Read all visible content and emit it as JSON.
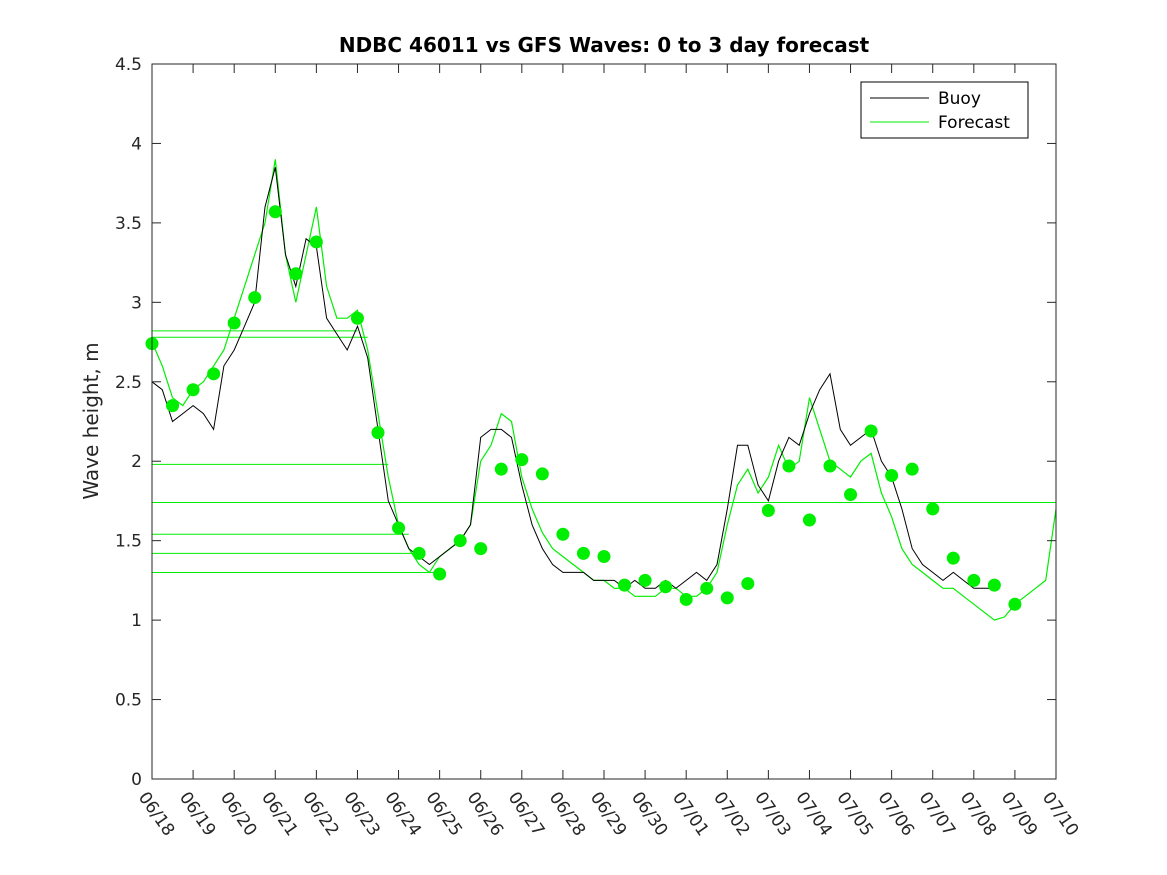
{
  "chart_data": {
    "type": "line",
    "title": "NDBC 46011 vs GFS Waves: 0 to 3 day forecast",
    "xlabel": "",
    "ylabel": "Wave height, m",
    "xlim": [
      0,
      22
    ],
    "ylim": [
      0,
      4.5
    ],
    "x_tick_labels": [
      "06/18",
      "06/19",
      "06/20",
      "06/21",
      "06/22",
      "06/23",
      "06/24",
      "06/25",
      "06/26",
      "06/27",
      "06/28",
      "06/29",
      "06/30",
      "07/01",
      "07/02",
      "07/03",
      "07/04",
      "07/05",
      "07/06",
      "07/07",
      "07/08",
      "07/09",
      "07/10"
    ],
    "y_ticks": [
      0,
      0.5,
      1,
      1.5,
      2,
      2.5,
      3,
      3.5,
      4,
      4.5
    ],
    "y_tick_labels": [
      "0",
      "0.5",
      "1",
      "1.5",
      "2",
      "2.5",
      "3",
      "3.5",
      "4",
      "4.5"
    ],
    "grid": false,
    "legend_position": "top-right",
    "colors": {
      "buoy": "#000000",
      "forecast": "#00ee00"
    },
    "series": [
      {
        "name": "Buoy",
        "type": "line",
        "x": [
          0.0,
          0.25,
          0.5,
          0.75,
          1.0,
          1.25,
          1.5,
          1.75,
          2.0,
          2.25,
          2.5,
          2.75,
          3.0,
          3.25,
          3.5,
          3.75,
          4.0,
          4.25,
          4.5,
          4.75,
          5.0,
          5.25,
          5.5,
          5.75,
          6.0,
          6.25,
          6.5,
          6.75,
          7.0,
          7.25,
          7.5,
          7.75,
          8.0,
          8.25,
          8.5,
          8.75,
          9.0,
          9.25,
          9.5,
          9.75,
          10.0,
          10.25,
          10.5,
          10.75,
          11.0,
          11.25,
          11.5,
          11.75,
          12.0,
          12.25,
          12.5,
          12.75,
          13.0,
          13.25,
          13.5,
          13.75,
          14.0,
          14.25,
          14.5,
          14.75,
          15.0,
          15.25,
          15.5,
          15.75,
          16.0,
          16.25,
          16.5,
          16.75,
          17.0,
          17.25,
          17.5,
          17.75,
          18.0,
          18.25,
          18.5,
          18.75,
          19.0,
          19.25,
          19.5,
          19.75,
          20.0,
          20.25,
          20.5
        ],
        "y": [
          2.5,
          2.45,
          2.25,
          2.3,
          2.35,
          2.3,
          2.2,
          2.6,
          2.7,
          2.85,
          3.0,
          3.6,
          3.85,
          3.3,
          3.1,
          3.4,
          3.35,
          2.9,
          2.8,
          2.7,
          2.85,
          2.65,
          2.2,
          1.75,
          1.6,
          1.45,
          1.4,
          1.35,
          1.4,
          1.45,
          1.5,
          1.6,
          2.15,
          2.2,
          2.2,
          2.15,
          1.85,
          1.6,
          1.45,
          1.35,
          1.3,
          1.3,
          1.3,
          1.25,
          1.25,
          1.25,
          1.2,
          1.25,
          1.2,
          1.2,
          1.25,
          1.2,
          1.25,
          1.3,
          1.25,
          1.35,
          1.7,
          2.1,
          2.1,
          1.85,
          1.75,
          2.0,
          2.15,
          2.1,
          2.3,
          2.45,
          2.55,
          2.2,
          2.1,
          2.15,
          2.2,
          2.0,
          1.9,
          1.7,
          1.45,
          1.35,
          1.3,
          1.25,
          1.3,
          1.25,
          1.2,
          1.2,
          1.2
        ]
      },
      {
        "name": "Forecast",
        "type": "line",
        "x": [
          0,
          0.25,
          0.5,
          0.75,
          1.0,
          1.25,
          1.5,
          1.75,
          2.0,
          2.25,
          2.5,
          2.75,
          3.0,
          3.25,
          3.5,
          3.75,
          4.0,
          4.25,
          4.5,
          4.75,
          5.0,
          5.25,
          5.5,
          5.75,
          6.0,
          6.25,
          6.5,
          6.75,
          7.0,
          7.25,
          7.5,
          7.75,
          8.0,
          8.25,
          8.5,
          8.75,
          9.0,
          9.25,
          9.5,
          9.75,
          10.0,
          10.25,
          10.5,
          10.75,
          11.0,
          11.25,
          11.5,
          11.75,
          12.0,
          12.25,
          12.5,
          12.75,
          13.0,
          13.25,
          13.5,
          13.75,
          14.0,
          14.25,
          14.5,
          14.75,
          15.0,
          15.25,
          15.5,
          15.75,
          16.0,
          16.25,
          16.5,
          16.75,
          17.0,
          17.25,
          17.5,
          17.75,
          18.0,
          18.25,
          18.5,
          18.75,
          19.0,
          19.25,
          19.5,
          19.75,
          20.0,
          20.25,
          20.5,
          20.75,
          21.0,
          21.25,
          21.5,
          21.75,
          22.0
        ],
        "y": [
          2.75,
          2.6,
          2.4,
          2.35,
          2.45,
          2.5,
          2.6,
          2.7,
          2.9,
          3.1,
          3.3,
          3.5,
          3.9,
          3.3,
          3.0,
          3.3,
          3.6,
          3.1,
          2.9,
          2.9,
          2.95,
          2.7,
          2.3,
          1.9,
          1.6,
          1.45,
          1.35,
          1.3,
          1.4,
          1.45,
          1.5,
          1.6,
          2.0,
          2.1,
          2.3,
          2.25,
          1.9,
          1.7,
          1.55,
          1.45,
          1.4,
          1.35,
          1.3,
          1.25,
          1.25,
          1.2,
          1.2,
          1.15,
          1.15,
          1.15,
          1.2,
          1.2,
          1.15,
          1.15,
          1.2,
          1.3,
          1.6,
          1.85,
          1.95,
          1.8,
          1.9,
          2.1,
          1.95,
          2.0,
          2.4,
          2.2,
          2.0,
          1.95,
          1.9,
          2.0,
          2.05,
          1.8,
          1.65,
          1.45,
          1.35,
          1.3,
          1.25,
          1.2,
          1.2,
          1.15,
          1.1,
          1.05,
          1.0,
          1.02,
          1.1,
          1.15,
          1.2,
          1.25,
          1.7
        ]
      },
      {
        "name": "",
        "type": "markers",
        "x": [
          0,
          0.5,
          1.0,
          1.5,
          2.0,
          2.5,
          3.0,
          3.5,
          4.0,
          5.0,
          5.5,
          6.0,
          6.5,
          7.0,
          7.5,
          8.0,
          8.5,
          9.0,
          9.5,
          10.0,
          10.5,
          11.0,
          11.5,
          12.0,
          12.5,
          13.0,
          13.5,
          14.0,
          14.5,
          15.0,
          15.5,
          16.0,
          16.5,
          17.0,
          17.5,
          18.0,
          18.5,
          19.0,
          19.5,
          20.0,
          20.5,
          21.0
        ],
        "y": [
          2.74,
          2.35,
          2.45,
          2.55,
          2.87,
          3.03,
          3.57,
          3.18,
          3.38,
          2.9,
          2.18,
          1.58,
          1.42,
          1.29,
          1.5,
          1.45,
          1.95,
          2.01,
          1.92,
          1.54,
          1.42,
          1.4,
          1.22,
          1.25,
          1.21,
          1.13,
          1.2,
          1.14,
          1.23,
          1.69,
          1.97,
          1.63,
          1.97,
          1.79,
          2.19,
          1.91,
          1.95,
          1.7,
          1.39,
          1.25,
          1.22,
          1.1
        ]
      }
    ],
    "horizontal_lines": [
      2.82,
      2.78,
      1.98,
      1.74,
      1.54,
      1.42,
      1.3
    ],
    "horizontal_line_ends": [
      5.0,
      5.25,
      5.75,
      22.0,
      6.25,
      6.5,
      7.0
    ]
  },
  "legend": {
    "items": [
      {
        "label": "Buoy",
        "color": "#000000"
      },
      {
        "label": "Forecast",
        "color": "#00ee00"
      }
    ]
  }
}
